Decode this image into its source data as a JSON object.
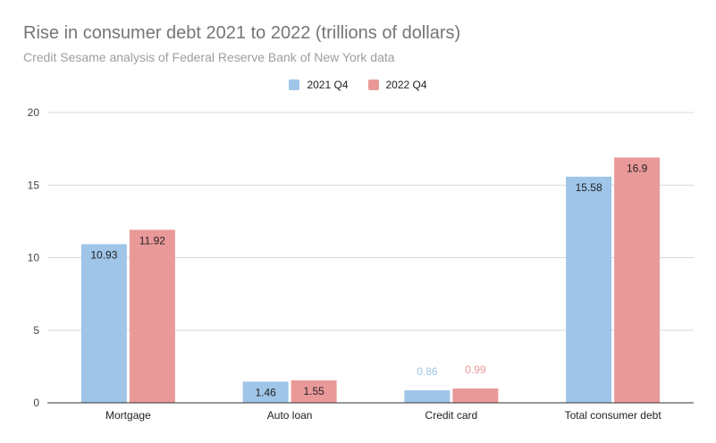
{
  "colors": {
    "s2021": "#9fc5e8",
    "s2022": "#ea9999",
    "grid": "#d9d9d9",
    "axis": "#333333"
  },
  "chart_data": {
    "type": "bar",
    "title": "Rise in consumer debt 2021 to 2022 (trillions of dollars)",
    "subtitle": "Credit Sesame analysis of Federal Reserve Bank of New York data",
    "categories": [
      "Mortgage",
      "Auto loan",
      "Credit card",
      "Total consumer debt"
    ],
    "series": [
      {
        "name": "2021 Q4",
        "values": [
          10.93,
          1.46,
          0.86,
          15.58
        ],
        "labels": [
          "10.93",
          "1.46",
          "0.86",
          "15.58"
        ]
      },
      {
        "name": "2022 Q4",
        "values": [
          11.92,
          1.55,
          0.99,
          16.9
        ],
        "labels": [
          "11.92",
          "1.55",
          "0.99",
          "16.9"
        ]
      }
    ],
    "ylim": [
      0,
      20
    ],
    "yticks": [
      "0",
      "5",
      "10",
      "15",
      "20"
    ],
    "grid": true,
    "legend": "top-center"
  }
}
